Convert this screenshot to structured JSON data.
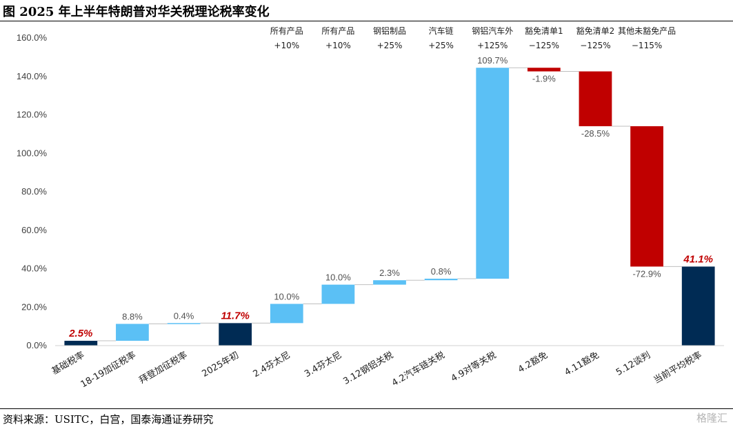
{
  "header": {
    "title": "图  2025 年上半年特朗普对华关税理论税率变化"
  },
  "footer": {
    "source": "资料来源：USITC，白宫，国泰海通证券研究",
    "watermark": "格隆汇"
  },
  "colors": {
    "increase": "#5bc0f5",
    "decrease": "#c00000",
    "total": "#002b54",
    "emphasis_label": "#c00000"
  },
  "chart_data": {
    "type": "bar",
    "subtype": "waterfall",
    "title": "2025 年上半年特朗普对华关税理论税率变化",
    "xlabel": "",
    "ylabel": "",
    "ylim": [
      0,
      160
    ],
    "yticks": [
      "0.0%",
      "20.0%",
      "40.0%",
      "60.0%",
      "80.0%",
      "100.0%",
      "120.0%",
      "140.0%",
      "160.0%"
    ],
    "gridlines": false,
    "categories": [
      "基础税率",
      "18-19加征税率",
      "拜登加征税率",
      "2025年初",
      "2.4芬太尼",
      "3.4芬太尼",
      "3.12钢铝关税",
      "4.2汽车链关税",
      "4.9对等关税",
      "4.2豁免",
      "4.11豁免",
      "5.12谈判",
      "当前平均税率"
    ],
    "bars": [
      {
        "kind": "total",
        "start": 0,
        "end": 2.5,
        "label": "2.5%",
        "emphasis": true
      },
      {
        "kind": "increase",
        "start": 2.5,
        "end": 11.3,
        "label": "8.8%"
      },
      {
        "kind": "increase",
        "start": 11.3,
        "end": 11.7,
        "label": "0.4%"
      },
      {
        "kind": "total",
        "start": 0,
        "end": 11.7,
        "label": "11.7%",
        "emphasis": true
      },
      {
        "kind": "increase",
        "start": 11.7,
        "end": 21.7,
        "label": "10.0%"
      },
      {
        "kind": "increase",
        "start": 21.7,
        "end": 31.7,
        "label": "10.0%"
      },
      {
        "kind": "increase",
        "start": 31.7,
        "end": 34.0,
        "label": "2.3%"
      },
      {
        "kind": "increase",
        "start": 34.0,
        "end": 34.8,
        "label": "0.8%"
      },
      {
        "kind": "increase",
        "start": 34.8,
        "end": 144.5,
        "label": "109.7%"
      },
      {
        "kind": "decrease",
        "start": 144.5,
        "end": 142.6,
        "label": "-1.9%"
      },
      {
        "kind": "decrease",
        "start": 142.6,
        "end": 114.1,
        "label": "-28.5%"
      },
      {
        "kind": "decrease",
        "start": 114.1,
        "end": 41.1,
        "label": "-72.9%"
      },
      {
        "kind": "total",
        "start": 0,
        "end": 41.1,
        "label": "41.1%",
        "emphasis": true
      }
    ],
    "annotations": [
      {
        "category_index": 4,
        "line1": "所有产品",
        "line2": "+10%"
      },
      {
        "category_index": 5,
        "line1": "所有产品",
        "line2": "+10%"
      },
      {
        "category_index": 6,
        "line1": "钢铝制品",
        "line2": "+25%"
      },
      {
        "category_index": 7,
        "line1": "汽车链",
        "line2": "+25%"
      },
      {
        "category_index": 8,
        "line1": "钢铝汽车外",
        "line2": "+125%"
      },
      {
        "category_index": 9,
        "line1": "豁免清单1",
        "line2": "−125%"
      },
      {
        "category_index": 10,
        "line1": "豁免清单2",
        "line2": "−125%"
      },
      {
        "category_index": 11,
        "line1": "其他未豁免产品",
        "line2": "−115%"
      }
    ]
  }
}
